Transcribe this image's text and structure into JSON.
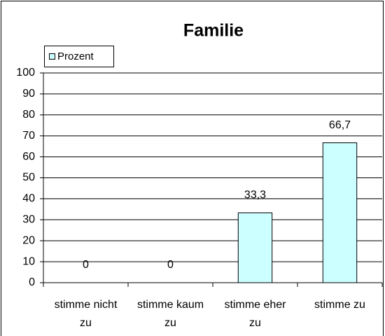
{
  "chart_data": {
    "type": "bar",
    "title": "Familie",
    "categories": [
      "stimme nicht zu",
      "stimme kaum zu",
      "stimme eher zu",
      "stimme zu"
    ],
    "series": [
      {
        "name": "Prozent",
        "color": "#ccffff",
        "values": [
          0,
          0,
          33.3,
          66.7
        ],
        "value_labels": [
          "0",
          "0",
          "33,3",
          "66,7"
        ]
      }
    ],
    "ylim": [
      0,
      100
    ],
    "yticks": [
      0,
      10,
      20,
      30,
      40,
      50,
      60,
      70,
      80,
      90,
      100
    ],
    "grid": true,
    "legend": "top-left"
  }
}
